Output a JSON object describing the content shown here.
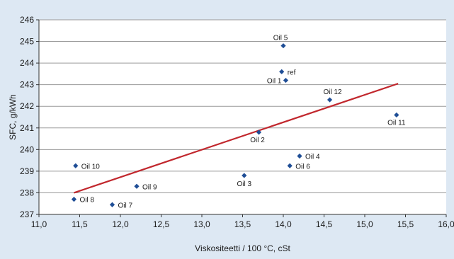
{
  "chart_data": {
    "type": "scatter",
    "title": "",
    "xlabel": "Viskositeetti / 100 °C, cSt",
    "ylabel": "SFC, g/kWh",
    "xlim": [
      11.0,
      16.0
    ],
    "ylim": [
      237,
      246
    ],
    "x_ticks": [
      "11,0",
      "11,5",
      "12,0",
      "12,5",
      "13,0",
      "13,5",
      "14,0",
      "14,5",
      "15,0",
      "15,5",
      "16,0"
    ],
    "y_ticks": [
      "237",
      "238",
      "239",
      "240",
      "241",
      "242",
      "243",
      "244",
      "245",
      "246"
    ],
    "grid": "horizontal",
    "legend": "none",
    "points": [
      {
        "label": "Oil 1",
        "x": 14.03,
        "y": 243.2
      },
      {
        "label": "ref",
        "x": 13.98,
        "y": 243.6
      },
      {
        "label": "Oil 5",
        "x": 14.0,
        "y": 244.8
      },
      {
        "label": "Oil 12",
        "x": 14.57,
        "y": 242.3
      },
      {
        "label": "Oil 11",
        "x": 15.39,
        "y": 241.6
      },
      {
        "label": "Oil 2",
        "x": 13.7,
        "y": 240.8
      },
      {
        "label": "Oil 4",
        "x": 14.2,
        "y": 239.7
      },
      {
        "label": "Oil 6",
        "x": 14.08,
        "y": 239.25
      },
      {
        "label": "Oil 3",
        "x": 13.52,
        "y": 238.8
      },
      {
        "label": "Oil 10",
        "x": 11.45,
        "y": 239.25
      },
      {
        "label": "Oil 9",
        "x": 12.2,
        "y": 238.3
      },
      {
        "label": "Oil 8",
        "x": 11.43,
        "y": 237.7
      },
      {
        "label": "Oil 7",
        "x": 11.9,
        "y": 237.45
      }
    ],
    "trendline": {
      "x": [
        11.43,
        15.41
      ],
      "y": [
        238.0,
        243.05
      ]
    },
    "colors": {
      "background": "#dde8f3",
      "plot_area": "#ffffff",
      "marker": "#1f4e96",
      "trendline": "#c1272d",
      "gridline": "#9a9a9a"
    }
  }
}
